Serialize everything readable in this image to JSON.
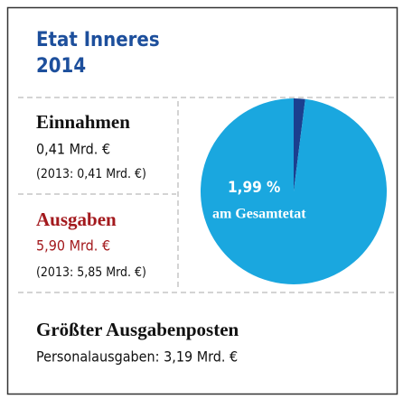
{
  "header": {
    "title": "Etat Inneres",
    "year": "2014"
  },
  "income": {
    "heading": "Einnahmen",
    "amount": "0,41 Mrd. €",
    "previous": "(2013: 0,41 Mrd. €)"
  },
  "expenses": {
    "heading": "Ausgaben",
    "amount": "5,90 Mrd. €",
    "previous": "(2013: 5,85 Mrd. €)"
  },
  "largest": {
    "heading": "Größter Ausgabenposten",
    "text": "Personalausgaben: 3,19 Mrd. €"
  },
  "chart_data": {
    "type": "pie",
    "values": [
      1.99,
      98.01
    ],
    "colors": [
      "#1b3f8f",
      "#1aa7df"
    ],
    "value_label": "1,99 %",
    "annotation": "am Gesamtetat"
  }
}
